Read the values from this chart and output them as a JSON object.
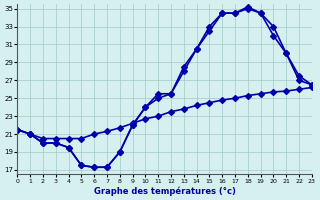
{
  "xlabel": "Graphe des températures (°c)",
  "background_color": "#d6f0f0",
  "grid_color": "#a0c8c8",
  "line_color": "#0000aa",
  "xlim": [
    0,
    23
  ],
  "ylim": [
    17,
    35
  ],
  "yticks": [
    17,
    19,
    21,
    23,
    25,
    27,
    29,
    31,
    33,
    35
  ],
  "xticks": [
    0,
    1,
    2,
    3,
    4,
    5,
    6,
    7,
    8,
    9,
    10,
    11,
    12,
    13,
    14,
    15,
    16,
    17,
    18,
    19,
    20,
    21,
    22,
    23
  ],
  "line1_x": [
    0,
    1,
    2,
    3,
    4,
    5,
    6,
    7,
    8,
    9,
    10,
    11,
    12,
    13,
    14,
    15,
    16,
    17,
    18,
    19,
    20,
    21,
    22,
    23
  ],
  "line1_y": [
    21.5,
    21,
    20,
    20,
    19.5,
    17.5,
    17.3,
    17.3,
    19.0,
    22.0,
    24.0,
    25.0,
    25.5,
    28.0,
    30.5,
    32.5,
    34.5,
    34.5,
    35.0,
    34.5,
    33.0,
    30.0,
    27.0,
    26.5
  ],
  "line2_x": [
    0,
    1,
    2,
    3,
    4,
    5,
    6,
    7,
    8,
    9,
    10,
    11,
    12,
    13,
    14,
    15,
    16,
    17,
    18,
    19,
    20,
    21,
    22,
    23
  ],
  "line2_y": [
    21.5,
    21,
    20,
    20,
    19.5,
    17.5,
    17.3,
    17.3,
    19.0,
    22.0,
    24.0,
    25.5,
    25.5,
    28.5,
    30.5,
    33.0,
    34.5,
    34.5,
    35.2,
    34.5,
    32.0,
    30.0,
    27.5,
    26.5
  ],
  "line3_x": [
    0,
    1,
    2,
    3,
    4,
    5,
    6,
    7,
    8,
    9,
    10,
    11,
    12,
    13,
    14,
    15,
    16,
    17,
    18,
    19,
    20,
    21,
    22,
    23
  ],
  "line3_y": [
    21.5,
    21,
    20.5,
    20.5,
    20.5,
    20.5,
    21.0,
    21.3,
    21.7,
    22.2,
    22.7,
    23.0,
    23.5,
    23.8,
    24.2,
    24.5,
    24.8,
    25.0,
    25.3,
    25.5,
    25.7,
    25.8,
    26.0,
    26.2
  ],
  "marker_size": 3,
  "line_width": 1.2
}
